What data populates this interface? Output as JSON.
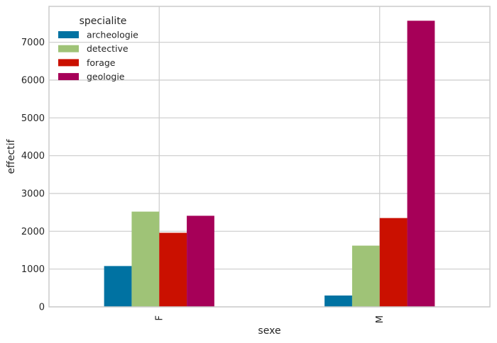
{
  "chart_data": {
    "type": "bar",
    "categories": [
      "F",
      "M"
    ],
    "series": [
      {
        "name": "archeologie",
        "values": [
          1080,
          300
        ],
        "color": "#0072A2"
      },
      {
        "name": "detective",
        "values": [
          2520,
          1620
        ],
        "color": "#9FC377"
      },
      {
        "name": "forage",
        "values": [
          1960,
          2350
        ],
        "color": "#CA1000"
      },
      {
        "name": "geologie",
        "values": [
          2410,
          7570
        ],
        "color": "#A60058"
      }
    ],
    "xlabel": "sexe",
    "ylabel": "effectif",
    "ylim": [
      0,
      7950
    ],
    "yticks": [
      0,
      1000,
      2000,
      3000,
      4000,
      5000,
      6000,
      7000
    ],
    "legend": {
      "title": "specialite",
      "position": "top-left"
    },
    "grid": true
  }
}
